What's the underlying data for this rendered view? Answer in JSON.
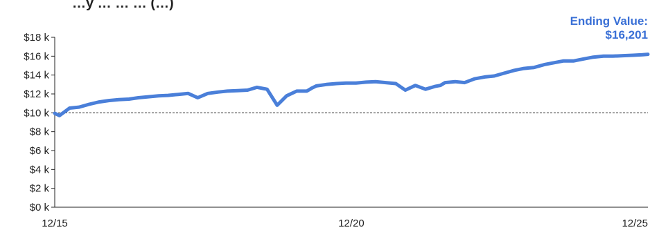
{
  "chart_data": {
    "type": "line",
    "title": "…y … … … (…)",
    "x_tick_labels": [
      "12/15",
      "12/20",
      "12/25"
    ],
    "y_tick_labels": [
      "$0 k",
      "$2 k",
      "$4 k",
      "$6 k",
      "$8 k",
      "$10 k",
      "$12 k",
      "$14 k",
      "$16 k",
      "$18 k"
    ],
    "ylim": [
      0,
      18000
    ],
    "xlim": [
      2015.92,
      2025.92
    ],
    "grid": false,
    "reference_line": {
      "value": 10000,
      "style": "dashed"
    },
    "end_label": {
      "title": "Ending Value:",
      "value": "$16,201"
    },
    "line_color": "#4a7fd9",
    "end_label_color": "#3a70d6",
    "series": [
      {
        "x": [
          2015.92,
          2016.0,
          2016.17,
          2016.33,
          2016.5,
          2016.67,
          2016.83,
          2017.0,
          2017.17,
          2017.33,
          2017.5,
          2017.67,
          2017.83,
          2018.0,
          2018.17,
          2018.33,
          2018.5,
          2018.67,
          2018.83,
          2019.0,
          2019.17,
          2019.33,
          2019.5,
          2019.67,
          2019.83,
          2020.0,
          2020.17,
          2020.25,
          2020.33,
          2020.5,
          2020.67,
          2020.83,
          2021.0,
          2021.17,
          2021.33,
          2021.5,
          2021.67,
          2021.83,
          2022.0,
          2022.17,
          2022.33,
          2022.42,
          2022.5,
          2022.67,
          2022.83,
          2023.0,
          2023.17,
          2023.33,
          2023.5,
          2023.67,
          2023.83,
          2024.0,
          2024.17,
          2024.33,
          2024.5,
          2024.67,
          2024.83,
          2025.0,
          2025.17,
          2025.33,
          2025.5,
          2025.67,
          2025.83,
          2025.92
        ],
        "values": [
          9950,
          9700,
          10500,
          10600,
          10900,
          11150,
          11300,
          11400,
          11450,
          11600,
          11700,
          11800,
          11850,
          11950,
          12050,
          11600,
          12050,
          12200,
          12300,
          12350,
          12400,
          12700,
          12500,
          10800,
          11800,
          12300,
          12300,
          12600,
          12850,
          13000,
          13100,
          13150,
          13150,
          13250,
          13300,
          13200,
          13100,
          12400,
          12900,
          12500,
          12800,
          12900,
          13200,
          13300,
          13200,
          13600,
          13800,
          13900,
          14200,
          14500,
          14700,
          14800,
          15100,
          15300,
          15500,
          15500,
          15700,
          15900,
          16000,
          16000,
          16050,
          16100,
          16150,
          16201
        ]
      }
    ]
  }
}
